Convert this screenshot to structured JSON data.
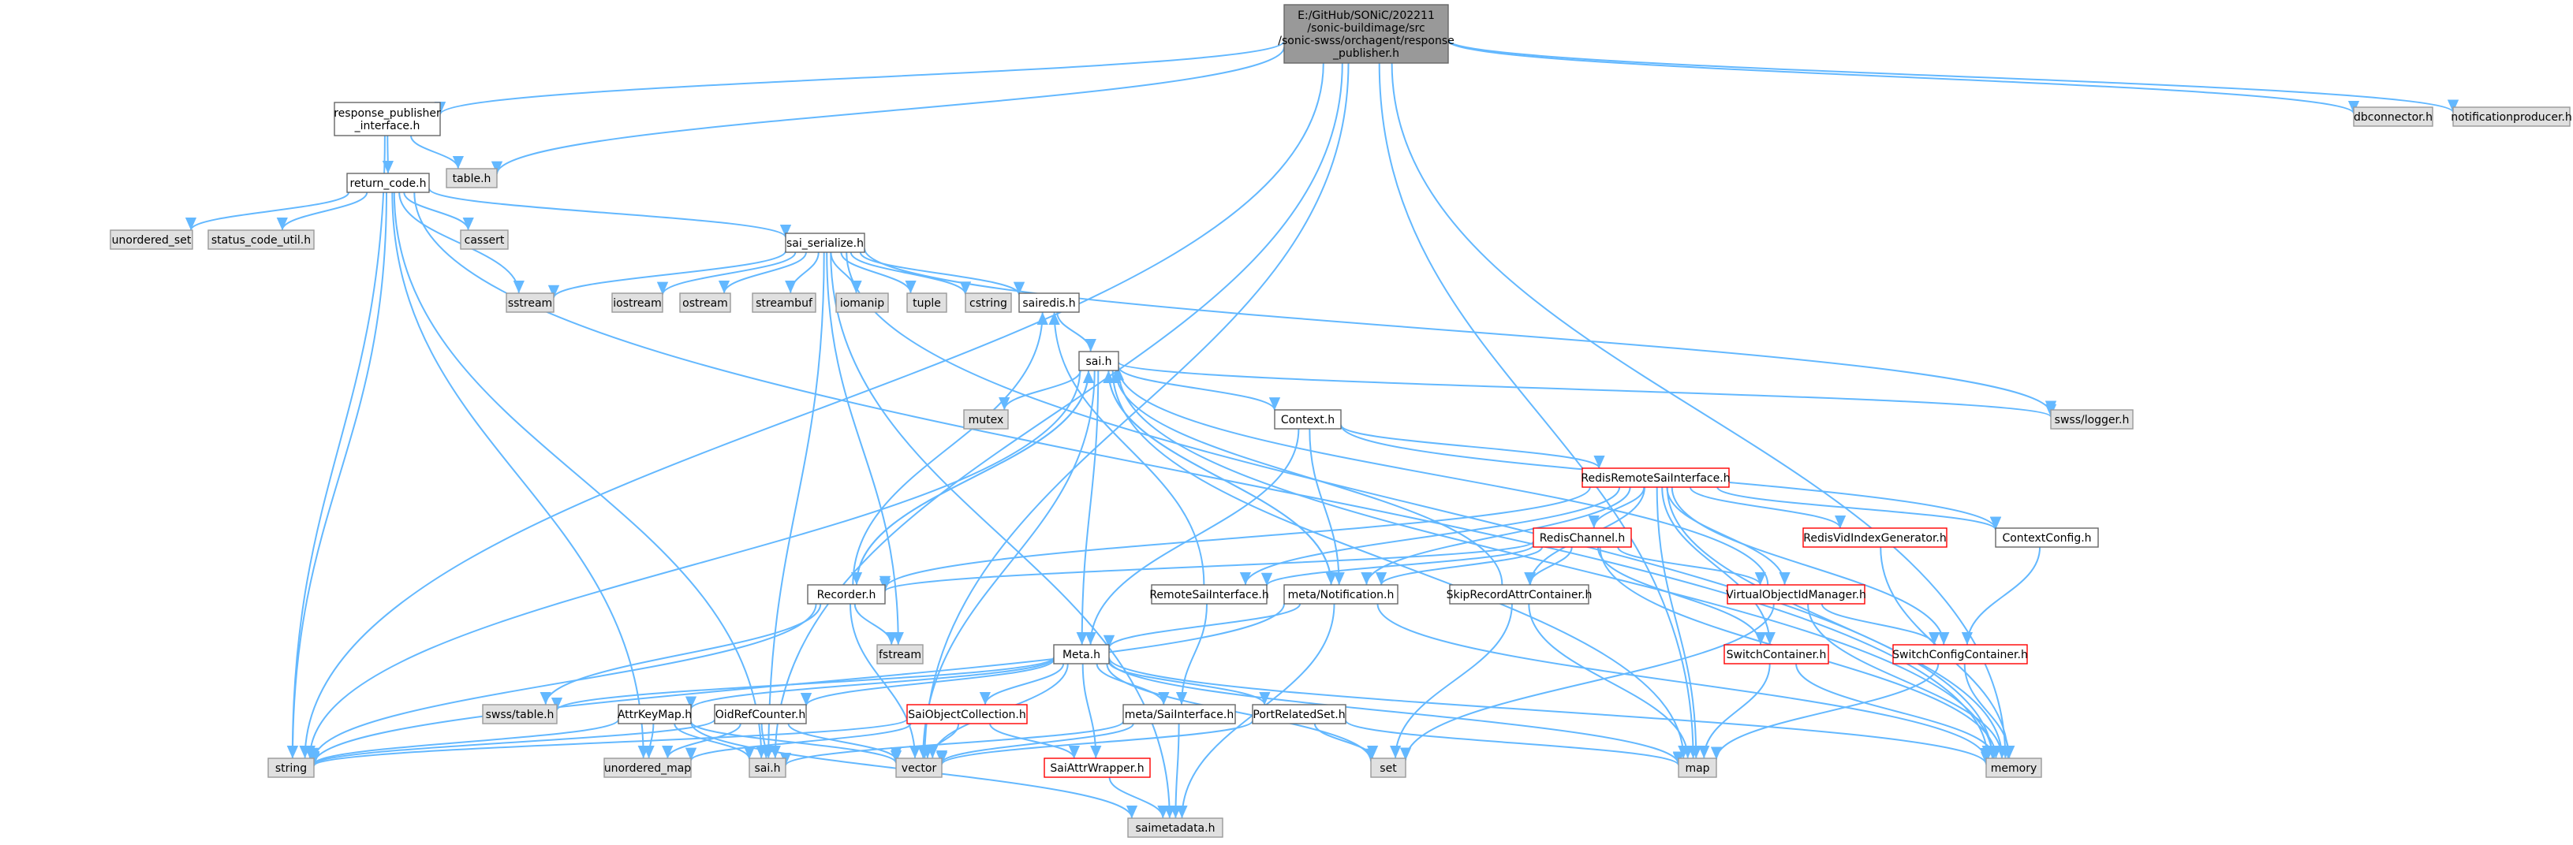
{
  "colors": {
    "edge": "#63b8ff",
    "root_fill": "#999999",
    "system_fill": "#e0e0e0",
    "local_fill": "#ffffff",
    "local_border": "#666666",
    "truncated_border": "#ff0000"
  },
  "nodes": {
    "root": {
      "lines": [
        "E:/GitHub/SONiC/202211",
        "/sonic-buildimage/src",
        "/sonic-swss/orchagent/response",
        "_publisher.h"
      ],
      "kind": "root"
    },
    "response_publisher_interface": {
      "lines": [
        "response_publisher",
        "_interface.h"
      ],
      "kind": "local"
    },
    "table_h": {
      "lines": [
        "table.h"
      ],
      "kind": "sys"
    },
    "return_code": {
      "lines": [
        "return_code.h"
      ],
      "kind": "local"
    },
    "dbconnector": {
      "lines": [
        "dbconnector.h"
      ],
      "kind": "sys"
    },
    "notificationproducer": {
      "lines": [
        "notificationproducer.h"
      ],
      "kind": "sys"
    },
    "unordered_set": {
      "lines": [
        "unordered_set"
      ],
      "kind": "sys"
    },
    "status_code_util": {
      "lines": [
        "status_code_util.h"
      ],
      "kind": "sys"
    },
    "cassert": {
      "lines": [
        "cassert"
      ],
      "kind": "sys"
    },
    "sai_serialize": {
      "lines": [
        "sai_serialize.h"
      ],
      "kind": "local"
    },
    "sstream": {
      "lines": [
        "sstream"
      ],
      "kind": "sys"
    },
    "iostream": {
      "lines": [
        "iostream"
      ],
      "kind": "sys"
    },
    "ostream": {
      "lines": [
        "ostream"
      ],
      "kind": "sys"
    },
    "streambuf": {
      "lines": [
        "streambuf"
      ],
      "kind": "sys"
    },
    "iomanip": {
      "lines": [
        "iomanip"
      ],
      "kind": "sys"
    },
    "tuple": {
      "lines": [
        "tuple"
      ],
      "kind": "sys"
    },
    "cstring": {
      "lines": [
        "cstring"
      ],
      "kind": "sys"
    },
    "sairedis": {
      "lines": [
        "sairedis.h"
      ],
      "kind": "local"
    },
    "sai_h": {
      "lines": [
        "sai.h"
      ],
      "kind": "local"
    },
    "mutex": {
      "lines": [
        "mutex"
      ],
      "kind": "sys"
    },
    "context": {
      "lines": [
        "Context.h"
      ],
      "kind": "local"
    },
    "swss_logger": {
      "lines": [
        "swss/logger.h"
      ],
      "kind": "sys"
    },
    "redis_remote": {
      "lines": [
        "RedisRemoteSaiInterface.h"
      ],
      "kind": "trunc"
    },
    "redis_channel": {
      "lines": [
        "RedisChannel.h"
      ],
      "kind": "trunc"
    },
    "redis_vid": {
      "lines": [
        "RedisVidIndexGenerator.h"
      ],
      "kind": "trunc"
    },
    "context_config": {
      "lines": [
        "ContextConfig.h"
      ],
      "kind": "local"
    },
    "recorder": {
      "lines": [
        "Recorder.h"
      ],
      "kind": "local"
    },
    "remote_sai": {
      "lines": [
        "RemoteSaiInterface.h"
      ],
      "kind": "local"
    },
    "meta_notification": {
      "lines": [
        "meta/Notification.h"
      ],
      "kind": "local"
    },
    "skip_record": {
      "lines": [
        "SkipRecordAttrContainer.h"
      ],
      "kind": "local"
    },
    "virtual_oid": {
      "lines": [
        "VirtualObjectIdManager.h"
      ],
      "kind": "trunc"
    },
    "fstream": {
      "lines": [
        "fstream"
      ],
      "kind": "sys"
    },
    "meta_h": {
      "lines": [
        "Meta.h"
      ],
      "kind": "local"
    },
    "switch_container": {
      "lines": [
        "SwitchContainer.h"
      ],
      "kind": "trunc"
    },
    "switch_config_container": {
      "lines": [
        "SwitchConfigContainer.h"
      ],
      "kind": "trunc"
    },
    "swss_table": {
      "lines": [
        "swss/table.h"
      ],
      "kind": "sys"
    },
    "attr_key_map": {
      "lines": [
        "AttrKeyMap.h"
      ],
      "kind": "local"
    },
    "oid_ref_counter": {
      "lines": [
        "OidRefCounter.h"
      ],
      "kind": "local"
    },
    "sai_object_collection": {
      "lines": [
        "SaiObjectCollection.h"
      ],
      "kind": "trunc"
    },
    "meta_sai_interface": {
      "lines": [
        "meta/SaiInterface.h"
      ],
      "kind": "local"
    },
    "port_related_set": {
      "lines": [
        "PortRelatedSet.h"
      ],
      "kind": "local"
    },
    "string": {
      "lines": [
        "string"
      ],
      "kind": "sys"
    },
    "unordered_map": {
      "lines": [
        "unordered_map"
      ],
      "kind": "sys"
    },
    "sai_h_sys": {
      "lines": [
        "sai.h"
      ],
      "kind": "sys"
    },
    "vector": {
      "lines": [
        "vector"
      ],
      "kind": "sys"
    },
    "set": {
      "lines": [
        "set"
      ],
      "kind": "sys"
    },
    "map": {
      "lines": [
        "map"
      ],
      "kind": "sys"
    },
    "memory": {
      "lines": [
        "memory"
      ],
      "kind": "sys"
    },
    "sai_attr_wrapper": {
      "lines": [
        "SaiAttrWrapper.h"
      ],
      "kind": "trunc"
    },
    "saimetadata": {
      "lines": [
        "saimetadata.h"
      ],
      "kind": "sys"
    }
  },
  "edges": [
    [
      "root",
      "response_publisher_interface"
    ],
    [
      "root",
      "table_h"
    ],
    [
      "root",
      "dbconnector"
    ],
    [
      "root",
      "notificationproducer"
    ],
    [
      "root",
      "string"
    ],
    [
      "root",
      "memory"
    ],
    [
      "root",
      "sai_h_sys"
    ],
    [
      "root",
      "vector"
    ],
    [
      "root",
      "map"
    ],
    [
      "response_publisher_interface",
      "return_code"
    ],
    [
      "response_publisher_interface",
      "table_h"
    ],
    [
      "response_publisher_interface",
      "string"
    ],
    [
      "return_code",
      "unordered_set"
    ],
    [
      "return_code",
      "status_code_util"
    ],
    [
      "return_code",
      "cassert"
    ],
    [
      "return_code",
      "sai_serialize"
    ],
    [
      "return_code",
      "sstream"
    ],
    [
      "return_code",
      "string"
    ],
    [
      "return_code",
      "unordered_map"
    ],
    [
      "return_code",
      "sai_h_sys"
    ],
    [
      "return_code",
      "memory"
    ],
    [
      "sai_serialize",
      "sstream"
    ],
    [
      "sai_serialize",
      "iostream"
    ],
    [
      "sai_serialize",
      "ostream"
    ],
    [
      "sai_serialize",
      "streambuf"
    ],
    [
      "sai_serialize",
      "iomanip"
    ],
    [
      "sai_serialize",
      "tuple"
    ],
    [
      "sai_serialize",
      "cstring"
    ],
    [
      "sai_serialize",
      "sairedis"
    ],
    [
      "sai_serialize",
      "swss_logger"
    ],
    [
      "sai_serialize",
      "fstream"
    ],
    [
      "sai_serialize",
      "sai_h_sys"
    ],
    [
      "sai_serialize",
      "memory"
    ],
    [
      "sai_serialize",
      "saimetadata"
    ],
    [
      "sairedis",
      "sai_h"
    ],
    [
      "sai_h",
      "mutex"
    ],
    [
      "sai_h",
      "context"
    ],
    [
      "sai_h",
      "swss_logger"
    ],
    [
      "sai_h",
      "recorder"
    ],
    [
      "sai_h",
      "meta_notification"
    ],
    [
      "sai_h",
      "meta_h"
    ],
    [
      "sai_h",
      "vector"
    ],
    [
      "sai_h",
      "string"
    ],
    [
      "sai_h",
      "map"
    ],
    [
      "sai_h",
      "memory"
    ],
    [
      "context",
      "redis_remote"
    ],
    [
      "context",
      "context_config"
    ],
    [
      "context",
      "meta_notification"
    ],
    [
      "context",
      "meta_h"
    ],
    [
      "redis_remote",
      "redis_channel"
    ],
    [
      "redis_remote",
      "redis_vid"
    ],
    [
      "redis_remote",
      "context_config"
    ],
    [
      "redis_remote",
      "recorder"
    ],
    [
      "redis_remote",
      "remote_sai"
    ],
    [
      "redis_remote",
      "meta_notification"
    ],
    [
      "redis_remote",
      "skip_record"
    ],
    [
      "redis_remote",
      "virtual_oid"
    ],
    [
      "redis_remote",
      "switch_container"
    ],
    [
      "redis_remote",
      "switch_config_container"
    ],
    [
      "redis_remote",
      "map"
    ],
    [
      "redis_remote",
      "memory"
    ],
    [
      "redis_channel",
      "recorder"
    ],
    [
      "redis_channel",
      "meta_notification"
    ],
    [
      "redis_channel",
      "skip_record"
    ],
    [
      "redis_channel",
      "virtual_oid"
    ],
    [
      "redis_channel",
      "switch_container"
    ],
    [
      "redis_channel",
      "memory"
    ],
    [
      "redis_channel",
      "remote_sai"
    ],
    [
      "redis_vid",
      "memory"
    ],
    [
      "context_config",
      "switch_config_container"
    ],
    [
      "recorder",
      "sai_h"
    ],
    [
      "recorder",
      "sairedis"
    ],
    [
      "recorder",
      "fstream"
    ],
    [
      "recorder",
      "swss_table"
    ],
    [
      "recorder",
      "string"
    ],
    [
      "recorder",
      "vector"
    ],
    [
      "remote_sai",
      "meta_sai_interface"
    ],
    [
      "remote_sai",
      "sairedis"
    ],
    [
      "meta_notification",
      "meta_h"
    ],
    [
      "meta_notification",
      "string"
    ],
    [
      "meta_notification",
      "memory"
    ],
    [
      "meta_notification",
      "saimetadata"
    ],
    [
      "meta_notification",
      "sai_h"
    ],
    [
      "skip_record",
      "sai_h"
    ],
    [
      "skip_record",
      "set"
    ],
    [
      "skip_record",
      "map"
    ],
    [
      "virtual_oid",
      "switch_config_container"
    ],
    [
      "virtual_oid",
      "memory"
    ],
    [
      "virtual_oid",
      "set"
    ],
    [
      "virtual_oid",
      "sai_h"
    ],
    [
      "switch_container",
      "map"
    ],
    [
      "switch_container",
      "memory"
    ],
    [
      "switch_config_container",
      "map"
    ],
    [
      "switch_config_container",
      "memory"
    ],
    [
      "meta_h",
      "swss_table"
    ],
    [
      "meta_h",
      "attr_key_map"
    ],
    [
      "meta_h",
      "oid_ref_counter"
    ],
    [
      "meta_h",
      "sai_object_collection"
    ],
    [
      "meta_h",
      "meta_sai_interface"
    ],
    [
      "meta_h",
      "port_related_set"
    ],
    [
      "meta_h",
      "sai_attr_wrapper"
    ],
    [
      "meta_h",
      "vector"
    ],
    [
      "meta_h",
      "set"
    ],
    [
      "meta_h",
      "map"
    ],
    [
      "meta_h",
      "memory"
    ],
    [
      "attr_key_map",
      "string"
    ],
    [
      "attr_key_map",
      "unordered_map"
    ],
    [
      "attr_key_map",
      "vector"
    ],
    [
      "attr_key_map",
      "saimetadata"
    ],
    [
      "attr_key_map",
      "sai_h_sys"
    ],
    [
      "oid_ref_counter",
      "sai_h_sys"
    ],
    [
      "oid_ref_counter",
      "unordered_map"
    ],
    [
      "oid_ref_counter",
      "string"
    ],
    [
      "oid_ref_counter",
      "vector"
    ],
    [
      "sai_object_collection",
      "sai_attr_wrapper"
    ],
    [
      "sai_object_collection",
      "vector"
    ],
    [
      "sai_object_collection",
      "unordered_map"
    ],
    [
      "sai_object_collection",
      "string"
    ],
    [
      "meta_sai_interface",
      "saimetadata"
    ],
    [
      "meta_sai_interface",
      "vector"
    ],
    [
      "meta_sai_interface",
      "sai_h_sys"
    ],
    [
      "port_related_set",
      "set"
    ],
    [
      "port_related_set",
      "map"
    ],
    [
      "port_related_set",
      "vector"
    ],
    [
      "sai_attr_wrapper",
      "saimetadata"
    ]
  ]
}
